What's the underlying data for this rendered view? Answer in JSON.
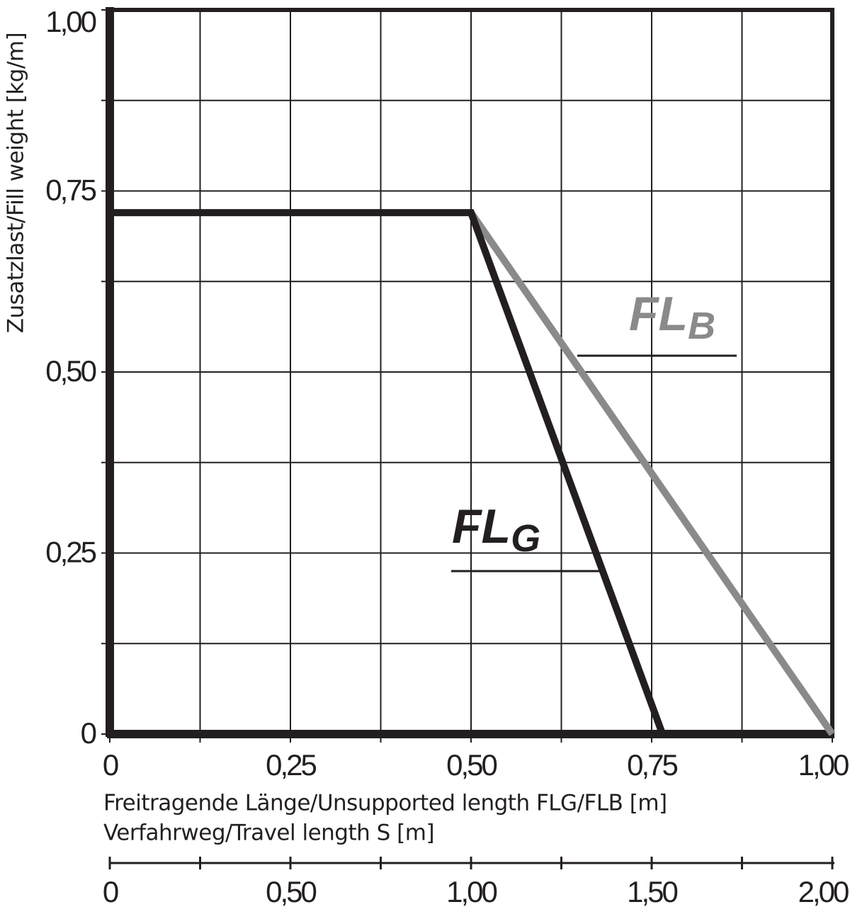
{
  "chart_data": {
    "type": "line",
    "ylabel": "Zusatzlast/Fill weight [kg/m]",
    "xlabel": "Freitragende Länge/Unsupported length FLG/FLB [m]",
    "x2label": "Verfahrweg/Travel length S [m]",
    "xlim": [
      0,
      1
    ],
    "ylim": [
      0,
      1
    ],
    "x2lim": [
      0,
      2
    ],
    "xticks": [
      0,
      {
        "value": 0.25,
        "label": "0,25"
      },
      {
        "value": 0.5,
        "label": "0,50"
      },
      {
        "value": 0.75,
        "label": "0,75"
      },
      {
        "value": 1,
        "label": "1,00"
      }
    ],
    "yticks": [
      0,
      {
        "value": 0.25,
        "label": "0,25"
      },
      {
        "value": 0.5,
        "label": "0,50"
      },
      {
        "value": 0.75,
        "label": "0,75"
      },
      {
        "value": 1,
        "label": "1,00"
      }
    ],
    "x2ticks": [
      0,
      {
        "value": 0.5,
        "label": "0,50"
      },
      {
        "value": 1,
        "label": "1,00"
      },
      {
        "value": 1.5,
        "label": "1,50"
      },
      {
        "value": 2,
        "label": "2,00"
      }
    ],
    "xminor": [
      0.125,
      0.375,
      0.625,
      0.875
    ],
    "yminor": [
      0.125,
      0.375,
      0.625,
      0.875
    ],
    "x2minor": [
      0.25,
      0.75,
      1.25,
      1.75
    ],
    "grid": true,
    "series": [
      {
        "name": "FL",
        "subscript": "B",
        "color": "#8a8a8a",
        "x": [
          0.5,
          1.0
        ],
        "values": [
          0.72,
          0
        ]
      },
      {
        "name": "FL",
        "subscript": "G",
        "color": "#231f20",
        "x": [
          0,
          0.5,
          0.765
        ],
        "values": [
          0.72,
          0.72,
          0
        ]
      }
    ]
  }
}
